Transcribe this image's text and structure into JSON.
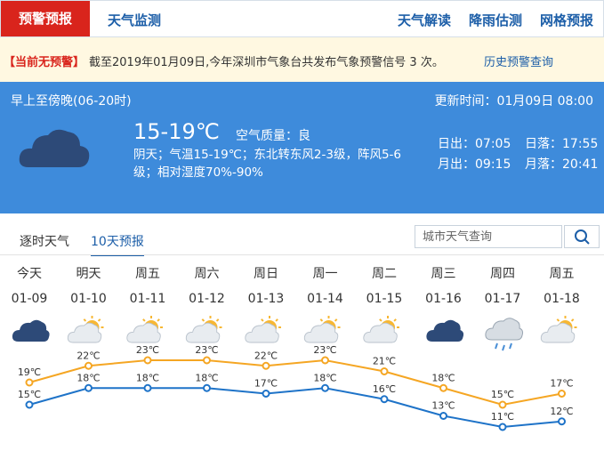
{
  "nav": {
    "tabs": [
      "预警预报",
      "天气监测"
    ],
    "links": [
      "天气解读",
      "降雨估测",
      "网格预报"
    ]
  },
  "alert": {
    "status": "【当前无预警】",
    "message": "截至2019年01月09日,今年深圳市气象台共发布气象预警信号 3 次。",
    "link": "历史预警查询"
  },
  "current": {
    "period": "早上至傍晚(06-20时)",
    "updated": "更新时间：01月09日 08:00",
    "temperature": "15-19℃",
    "air_quality": "空气质量：良",
    "description": "阴天；气温15-19℃；东北转东风2-3级，阵风5-6级；相对湿度70%-90%",
    "sunrise": "日出：07:05",
    "sunset": "日落：17:55",
    "moonrise": "月出：09:15",
    "moonset": "月落：20:41"
  },
  "forecast_tabs": [
    "逐时天气",
    "10天预报"
  ],
  "search_placeholder": "城市天气查询",
  "chart_data": {
    "type": "line",
    "weekdays": [
      "今天",
      "明天",
      "周五",
      "周六",
      "周日",
      "周一",
      "周二",
      "周三",
      "周四",
      "周五"
    ],
    "categories": [
      "01-09",
      "01-10",
      "01-11",
      "01-12",
      "01-13",
      "01-14",
      "01-15",
      "01-16",
      "01-17",
      "01-18"
    ],
    "icons": [
      "cloudy",
      "partly-cloudy",
      "partly-cloudy",
      "partly-cloudy",
      "partly-cloudy",
      "partly-cloudy",
      "partly-cloudy",
      "cloudy",
      "rain",
      "partly-cloudy"
    ],
    "series": [
      {
        "color": "#f5a623",
        "values": [
          19,
          22,
          23,
          23,
          22,
          23,
          21,
          18,
          15,
          17
        ],
        "value_labels": [
          "19℃",
          "22℃",
          "23℃",
          "23℃",
          "22℃",
          "23℃",
          "21℃",
          "18℃",
          "15℃",
          "17℃"
        ]
      },
      {
        "color": "#1e73c8",
        "values": [
          15,
          18,
          18,
          18,
          17,
          18,
          16,
          13,
          11,
          12
        ],
        "value_labels": [
          "15℃",
          "18℃",
          "18℃",
          "18℃",
          "17℃",
          "18℃",
          "16℃",
          "13℃",
          "11℃",
          "12℃"
        ]
      }
    ]
  }
}
